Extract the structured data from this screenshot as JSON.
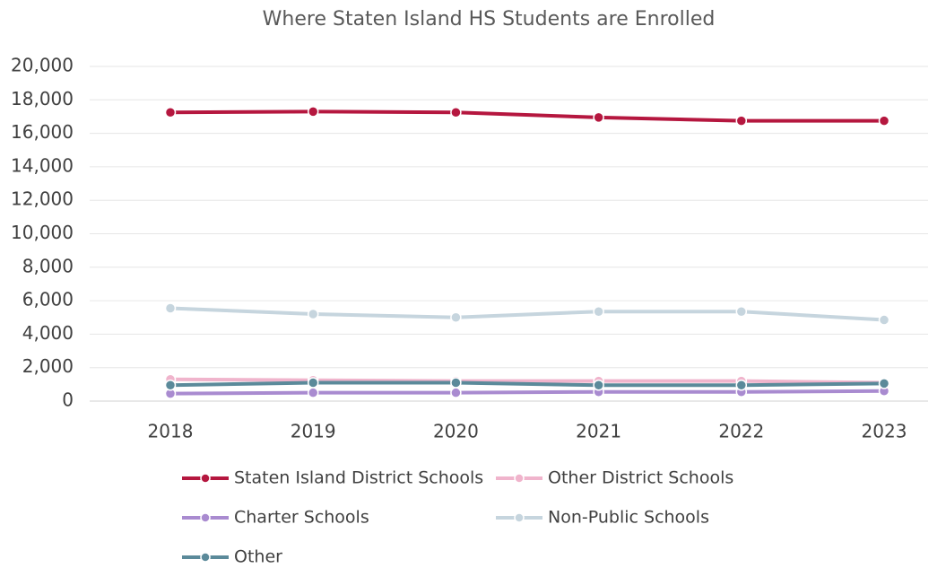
{
  "chart_data": {
    "type": "line",
    "title": "Where Staten Island HS Students are Enrolled",
    "categories": [
      "2018",
      "2019",
      "2020",
      "2021",
      "2022",
      "2023"
    ],
    "series": [
      {
        "name": "Staten Island District Schools",
        "color": "#b5173f",
        "values": [
          17250,
          17300,
          17250,
          16950,
          16750,
          16750
        ]
      },
      {
        "name": "Other District Schools",
        "color": "#f0b4cc",
        "values": [
          1300,
          1250,
          1200,
          1200,
          1200,
          1100
        ]
      },
      {
        "name": "Charter Schools",
        "color": "#a98bd0",
        "values": [
          450,
          500,
          500,
          550,
          550,
          600
        ]
      },
      {
        "name": "Non-Public Schools",
        "color": "#c6d5de",
        "values": [
          5550,
          5200,
          5000,
          5350,
          5350,
          4850
        ]
      },
      {
        "name": "Other",
        "color": "#5b8a9a",
        "values": [
          950,
          1100,
          1100,
          950,
          950,
          1050
        ]
      }
    ],
    "ylim": [
      0,
      20000
    ],
    "yticks": [
      0,
      {
        "value": 2000,
        "label": "2,000"
      },
      {
        "value": 4000,
        "label": "4,000"
      },
      {
        "value": 6000,
        "label": "6,000"
      },
      {
        "value": 8000,
        "label": "8,000"
      },
      {
        "value": 10000,
        "label": "10,000"
      },
      {
        "value": 12000,
        "label": "12,000"
      },
      {
        "value": 14000,
        "label": "14,000"
      },
      {
        "value": 16000,
        "label": "16,000"
      },
      {
        "value": 18000,
        "label": "18,000"
      },
      {
        "value": 20000,
        "label": "20,000"
      }
    ],
    "grid": true,
    "legend": "bottom"
  }
}
